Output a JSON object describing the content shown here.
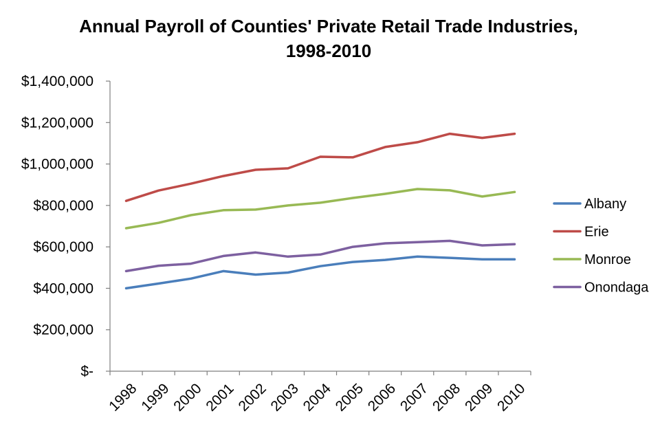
{
  "chart_data": {
    "type": "line",
    "title": "Annual Payroll of Counties' Private Retail Trade Industries, 1998-2010",
    "title_lines": [
      "Annual Payroll of Counties' Private Retail Trade Industries,",
      "1998-2010"
    ],
    "xlabel": "",
    "ylabel": "",
    "categories": [
      "1998",
      "1999",
      "2000",
      "2001",
      "2002",
      "2003",
      "2004",
      "2005",
      "2006",
      "2007",
      "2008",
      "2009",
      "2010"
    ],
    "ylim": [
      0,
      1400000
    ],
    "y_ticks": [
      0,
      200000,
      400000,
      600000,
      800000,
      1000000,
      1200000,
      1400000
    ],
    "y_tick_labels": [
      "$-",
      "$200,000",
      "$400,000",
      "$600,000",
      "$800,000",
      "$1,000,000",
      "$1,200,000",
      "$1,400,000"
    ],
    "grid": false,
    "legend_position": "right",
    "series": [
      {
        "name": "Albany",
        "color": "#4a7ebb",
        "values": [
          400000,
          423000,
          447000,
          483000,
          466000,
          476000,
          507000,
          527000,
          537000,
          553000,
          547000,
          540000,
          540000
        ]
      },
      {
        "name": "Erie",
        "color": "#be4b48",
        "values": [
          822000,
          872000,
          905000,
          942000,
          972000,
          979000,
          1035000,
          1032000,
          1082000,
          1105000,
          1146000,
          1126000,
          1146000
        ]
      },
      {
        "name": "Monroe",
        "color": "#98b954",
        "values": [
          690000,
          716000,
          753000,
          777000,
          780000,
          800000,
          813000,
          836000,
          856000,
          879000,
          873000,
          843000,
          865000
        ]
      },
      {
        "name": "Onondaga",
        "color": "#7d60a0",
        "values": [
          483000,
          509000,
          519000,
          556000,
          573000,
          553000,
          563000,
          600000,
          617000,
          623000,
          629000,
          607000,
          613000
        ]
      }
    ]
  }
}
